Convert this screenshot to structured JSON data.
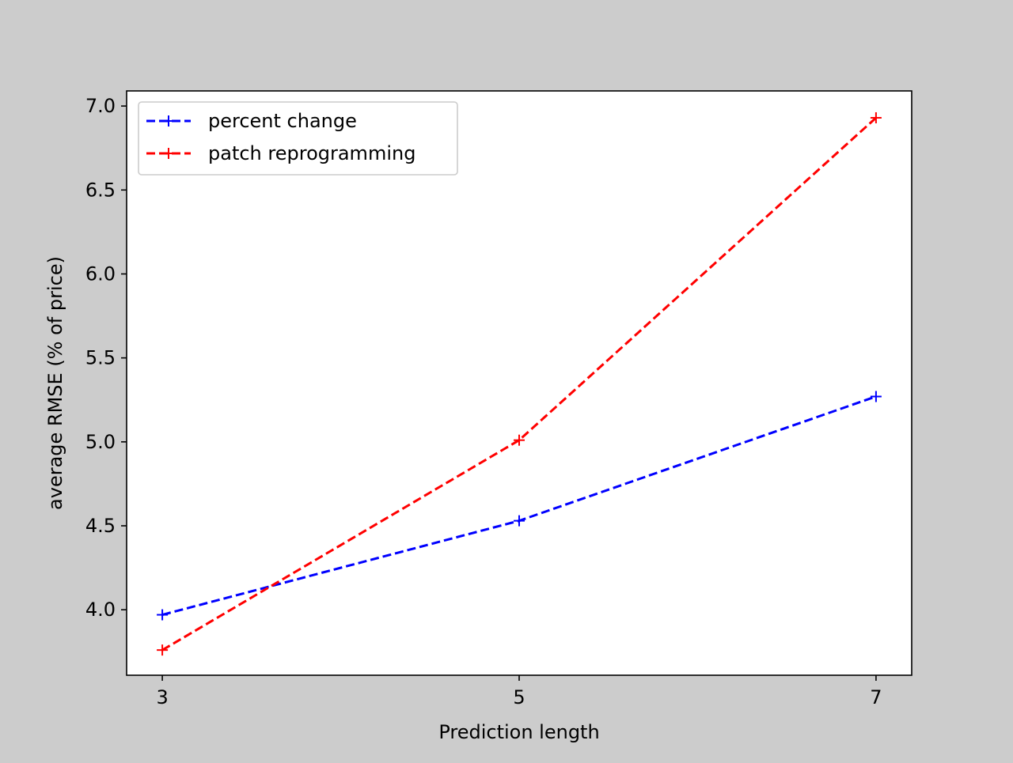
{
  "colors": {
    "figure_background": "#cccccc",
    "axes_background": "#ffffff",
    "axis_line": "#000000"
  },
  "chart_data": {
    "type": "line",
    "title": "",
    "xlabel": "Prediction length",
    "ylabel": "average RMSE (% of price)",
    "x": [
      3,
      5,
      7
    ],
    "xticks": [
      3,
      5,
      7
    ],
    "xlim": [
      2.8,
      7.2
    ],
    "ylim": [
      3.61,
      7.09
    ],
    "yticks": [
      4.0,
      4.5,
      5.0,
      5.5,
      6.0,
      6.5,
      7.0
    ],
    "ytick_labels": [
      "4.0",
      "4.5",
      "5.0",
      "5.5",
      "6.0",
      "6.5",
      "7.0"
    ],
    "grid": false,
    "legend_position": "upper-left",
    "series": [
      {
        "name": "percent change",
        "color": "#0000ff",
        "linestyle": "dashed",
        "marker": "+",
        "values": [
          3.97,
          4.53,
          5.27
        ]
      },
      {
        "name": "patch reprogramming",
        "color": "#ff0000",
        "linestyle": "dashed",
        "marker": "+",
        "values": [
          3.76,
          5.01,
          6.93
        ]
      }
    ]
  }
}
